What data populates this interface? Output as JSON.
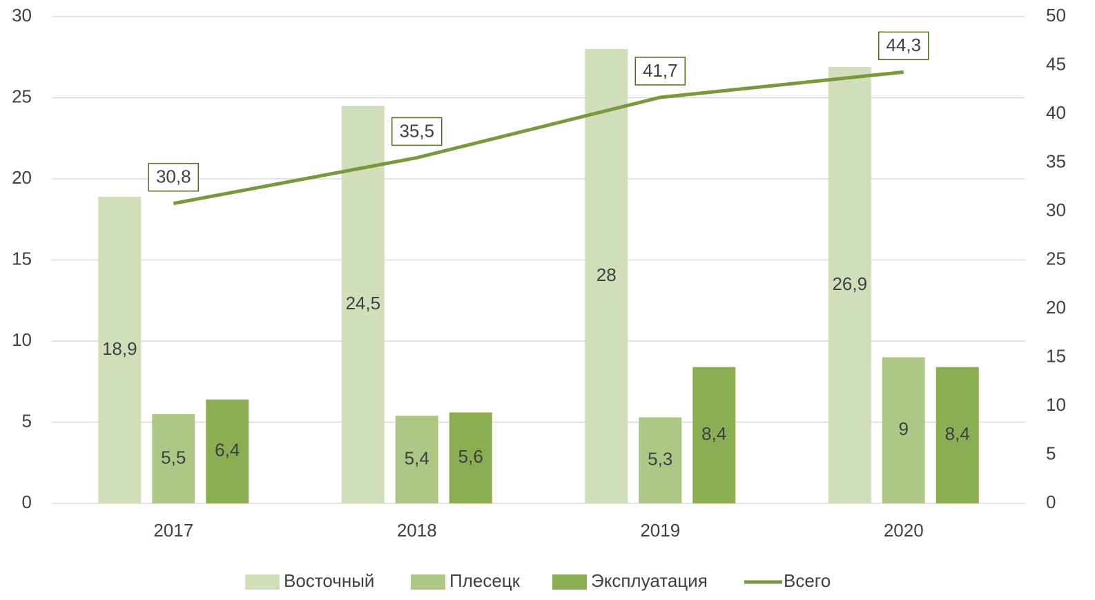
{
  "chart_data": {
    "type": "bar",
    "categories": [
      "2017",
      "2018",
      "2019",
      "2020"
    ],
    "series": [
      {
        "name": "Восточный",
        "color": "#d0dfba",
        "values": [
          18.9,
          24.5,
          28,
          26.9
        ],
        "value_labels": [
          "18,9",
          "24,5",
          "28",
          "26,9"
        ]
      },
      {
        "name": "Плесецк",
        "color": "#adc787",
        "values": [
          5.5,
          5.4,
          5.3,
          9
        ],
        "value_labels": [
          "5,5",
          "5,4",
          "5,3",
          "9"
        ]
      },
      {
        "name": "Эксплуатация",
        "color": "#8cae52",
        "values": [
          6.4,
          5.6,
          8.4,
          8.4
        ],
        "value_labels": [
          "6,4",
          "5,6",
          "8,4",
          "8,4"
        ]
      },
      {
        "name": "Всего",
        "color": "#77993f",
        "type": "line",
        "axis": "y2",
        "values": [
          30.8,
          35.5,
          41.7,
          44.3
        ],
        "value_labels": [
          "30,8",
          "35,5",
          "41,7",
          "44,3"
        ]
      }
    ],
    "ylim": [
      0,
      30
    ],
    "yticks": [
      0,
      5,
      10,
      15,
      20,
      25,
      30
    ],
    "y2lim": [
      0,
      50
    ],
    "y2ticks": [
      0,
      5,
      10,
      15,
      20,
      25,
      30,
      35,
      40,
      45,
      50
    ],
    "grid": true,
    "legend": "bottom"
  }
}
